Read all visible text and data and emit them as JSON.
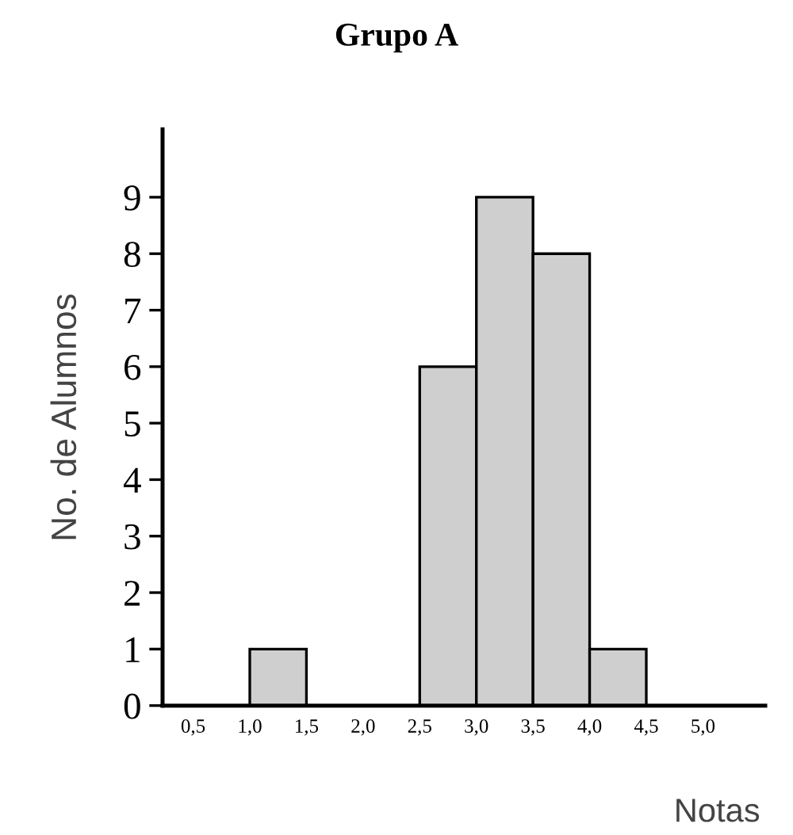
{
  "chart_data": {
    "type": "histogram",
    "title": "Grupo A",
    "xlabel": "Notas",
    "ylabel": "No. de Alumnos",
    "bins": [
      1.0,
      1.5,
      2.0,
      2.5,
      3.0,
      3.5,
      4.0,
      4.5
    ],
    "values": [
      1,
      0,
      0,
      6,
      9,
      8,
      1
    ],
    "color": "#cfcfcf",
    "xlim": [
      0.23,
      5.55
    ],
    "xticks": [
      {
        "value": 0.5,
        "label": "0,5"
      },
      {
        "value": 1.0,
        "label": "1,0"
      },
      {
        "value": 1.5,
        "label": "1,5"
      },
      {
        "value": 2.0,
        "label": "2,0"
      },
      {
        "value": 2.5,
        "label": "2,5"
      },
      {
        "value": 3.0,
        "label": "3,0"
      },
      {
        "value": 3.5,
        "label": "3,5"
      },
      {
        "value": 4.0,
        "label": "4,0"
      },
      {
        "value": 4.5,
        "label": "4,5"
      },
      {
        "value": 5.0,
        "label": "5,0"
      }
    ],
    "ylim": [
      0,
      10.2
    ],
    "yticks": [
      0,
      1,
      2,
      3,
      4,
      5,
      6,
      7,
      8,
      9
    ],
    "grid": false,
    "legend": false
  }
}
